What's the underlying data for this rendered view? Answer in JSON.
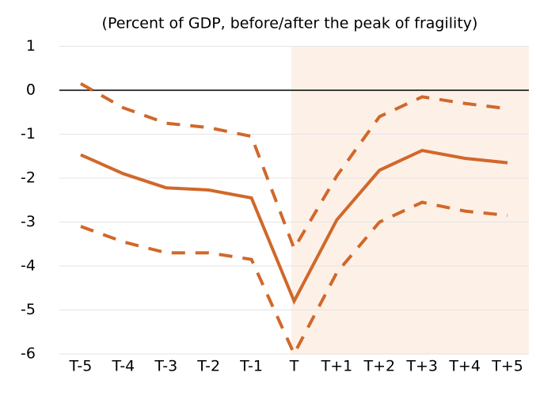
{
  "chart_data": {
    "type": "line",
    "subtitle": "(Percent of GDP, before/after the peak of fragility)",
    "categories": [
      "T-5",
      "T-4",
      "T-3",
      "T-2",
      "T-1",
      "T",
      "T+1",
      "T+2",
      "T+3",
      "T+4",
      "T+5"
    ],
    "series": [
      {
        "color": "#d0682a",
        "dash": false,
        "values": [
          -1.47,
          -1.9,
          -2.22,
          -2.27,
          -2.45,
          -4.8,
          -2.95,
          -1.82,
          -1.37,
          -1.55,
          -1.65
        ]
      },
      {
        "color": "#d0682a",
        "dash": true,
        "values": [
          0.15,
          -0.4,
          -0.75,
          -0.85,
          -1.05,
          -3.6,
          -1.95,
          -0.6,
          -0.15,
          -0.3,
          -0.42
        ]
      },
      {
        "color": "#d0682a",
        "dash": true,
        "values": [
          -3.1,
          -3.45,
          -3.7,
          -3.7,
          -3.85,
          -6.0,
          -4.15,
          -3.0,
          -2.55,
          -2.75,
          -2.85
        ]
      }
    ],
    "ylim": [
      -6,
      1
    ],
    "yticks": [
      -6,
      -5,
      -4,
      -3,
      -2,
      -1,
      0,
      1
    ],
    "grid": true
  }
}
